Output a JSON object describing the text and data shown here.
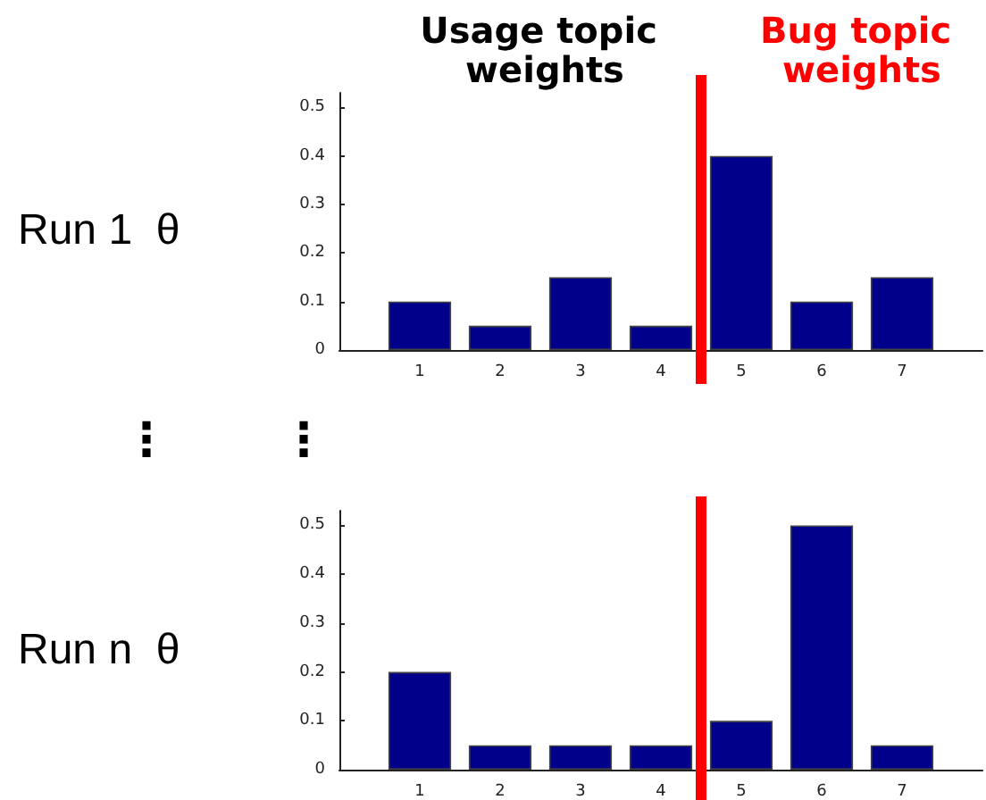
{
  "chart_data": [
    {
      "type": "bar",
      "ylabel": "Run 1  θ",
      "annotations": [
        "Usage topic weights"
      ],
      "x": [
        1,
        2,
        3,
        4,
        5,
        6,
        7
      ],
      "values": [
        0.1,
        0.05,
        0.15,
        0.05,
        0.4,
        0.1,
        0.15
      ],
      "color": "#00008b",
      "xlim": [
        0,
        8
      ],
      "xticks": [
        1,
        2,
        3,
        4,
        5,
        6,
        7
      ],
      "ylim": [
        0,
        0.53
      ],
      "yticks": [
        0,
        0.1,
        0.2,
        0.3,
        0.4,
        0.5
      ],
      "ref_lines": [
        {
          "axis": "x",
          "value": 4.5,
          "label": "Bug topic weights",
          "color": "#ff0000"
        }
      ],
      "grid": false
    },
    {
      "type": "bar",
      "ylabel": "Run n  θ",
      "annotations": [
        "⋮",
        "⋮"
      ],
      "x": [
        1,
        2,
        3,
        4,
        5,
        6,
        7
      ],
      "values": [
        0.2,
        0.05,
        0.05,
        0.05,
        0.1,
        0.5,
        0.05
      ],
      "color": "#00008b",
      "xlim": [
        0,
        8
      ],
      "xticks": [
        1,
        2,
        3,
        4,
        5,
        6,
        7
      ],
      "ylim": [
        0,
        0.53
      ],
      "yticks": [
        0,
        0.1,
        0.2,
        0.3,
        0.4,
        0.5
      ],
      "ref_lines": [
        {
          "axis": "x",
          "value": 4.5,
          "label": null,
          "color": "#ff0000"
        }
      ],
      "grid": false
    }
  ]
}
